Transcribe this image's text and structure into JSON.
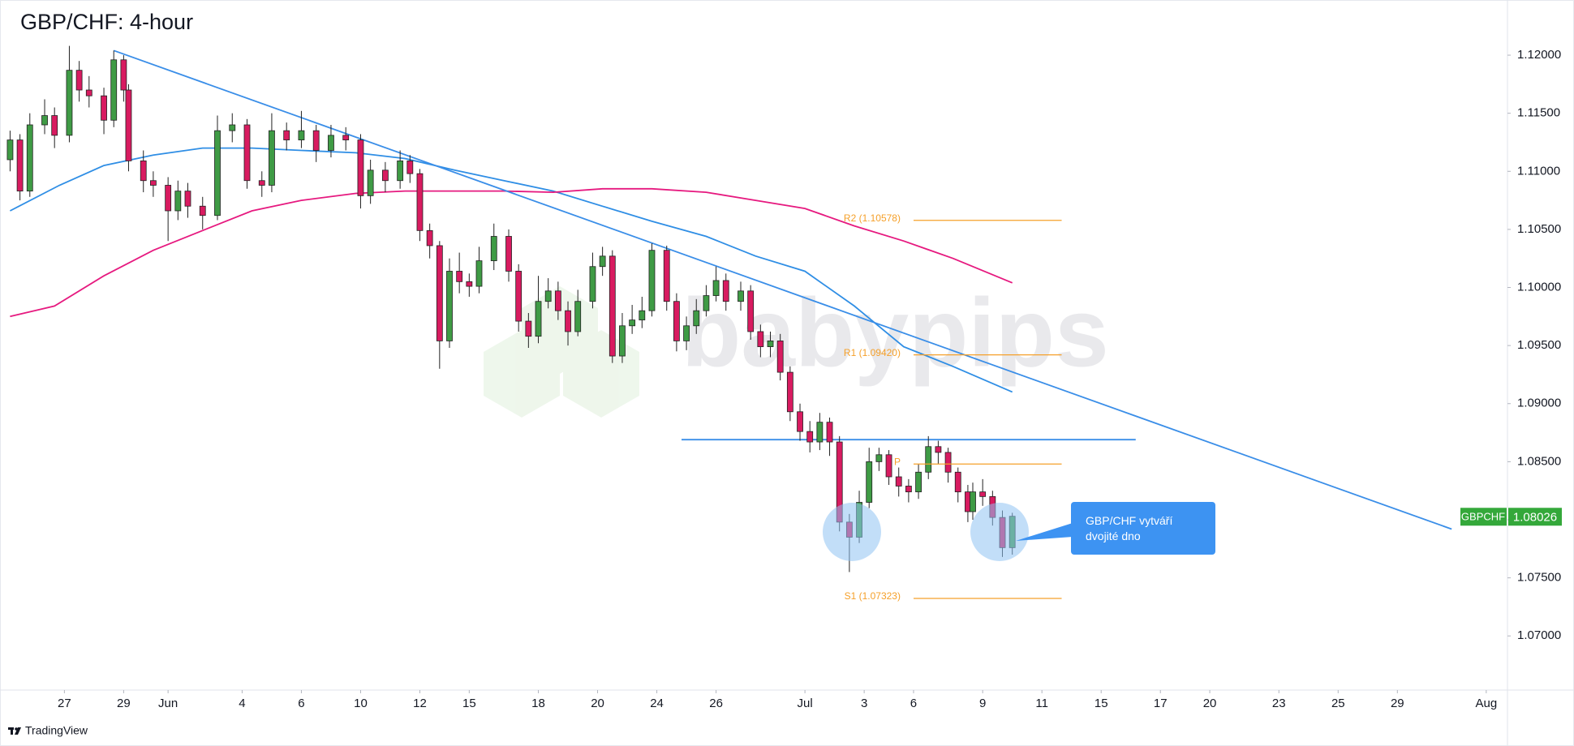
{
  "chart_data": {
    "type": "candlestick",
    "title": "GBP/CHF: 4-hour",
    "watermark": "babypips",
    "footer": "TradingView",
    "grid": false,
    "up_color": "#3f9b45",
    "down_color": "#d81b60",
    "xlim": [
      -0.4,
      303.3
    ],
    "ylim": [
      1.06534,
      1.12475
    ],
    "yticks": [
      {
        "value": 1.12,
        "label": "1.12000"
      },
      {
        "value": 1.115,
        "label": "1.11500"
      },
      {
        "value": 1.11,
        "label": "1.11000"
      },
      {
        "value": 1.105,
        "label": "1.10500"
      },
      {
        "value": 1.1,
        "label": "1.10000"
      },
      {
        "value": 1.095,
        "label": "1.09500"
      },
      {
        "value": 1.09,
        "label": "1.09000"
      },
      {
        "value": 1.085,
        "label": "1.08500"
      },
      {
        "value": 1.08,
        "label": "1.08000"
      },
      {
        "value": 1.075,
        "label": "1.07500"
      },
      {
        "value": 1.07,
        "label": "1.07000"
      }
    ],
    "xticks": [
      {
        "value": 11,
        "label": "27"
      },
      {
        "value": 23,
        "label": "29"
      },
      {
        "value": 32,
        "label": "Jun"
      },
      {
        "value": 47,
        "label": "4"
      },
      {
        "value": 59,
        "label": "6"
      },
      {
        "value": 71,
        "label": "10"
      },
      {
        "value": 83,
        "label": "12"
      },
      {
        "value": 93,
        "label": "15"
      },
      {
        "value": 107,
        "label": "18"
      },
      {
        "value": 119,
        "label": "20"
      },
      {
        "value": 131,
        "label": "24"
      },
      {
        "value": 143,
        "label": "26"
      },
      {
        "value": 161,
        "label": "Jul"
      },
      {
        "value": 173,
        "label": "3"
      },
      {
        "value": 183,
        "label": "6"
      },
      {
        "value": 197,
        "label": "9"
      },
      {
        "value": 209,
        "label": "11"
      },
      {
        "value": 221,
        "label": "15"
      },
      {
        "value": 233,
        "label": "17"
      },
      {
        "value": 243,
        "label": "20"
      },
      {
        "value": 257,
        "label": "23"
      },
      {
        "value": 269,
        "label": "25"
      },
      {
        "value": 281,
        "label": "29"
      },
      {
        "value": 299,
        "label": "Aug"
      }
    ],
    "ohlc": {
      "x": [
        0,
        2,
        4,
        7,
        9,
        12,
        14,
        16,
        19,
        21,
        23,
        24,
        27,
        29,
        32,
        34,
        36,
        39,
        42,
        45,
        48,
        51,
        53,
        56,
        59,
        62,
        65,
        68,
        71,
        73,
        76,
        79,
        81,
        83,
        85,
        87,
        89,
        91,
        93,
        95,
        98,
        101,
        103,
        105,
        107,
        109,
        111,
        113,
        115,
        118,
        120,
        122,
        124,
        126,
        128,
        130,
        133,
        135,
        137,
        139,
        141,
        143,
        145,
        148,
        150,
        152,
        154,
        156,
        158,
        160,
        162,
        164,
        166,
        168,
        170,
        172,
        174,
        176,
        178,
        180,
        182,
        184,
        186,
        188,
        190,
        192,
        194,
        195,
        197,
        199,
        201,
        203
      ],
      "open": [
        1.111,
        1.1127,
        1.1083,
        1.114,
        1.1148,
        1.1131,
        1.1187,
        1.117,
        1.1165,
        1.1144,
        1.1196,
        1.117,
        1.1109,
        1.1092,
        1.1088,
        1.1066,
        1.1083,
        1.107,
        1.1062,
        1.1135,
        1.114,
        1.1092,
        1.1088,
        1.1135,
        1.1127,
        1.1135,
        1.1118,
        1.1131,
        1.1127,
        1.1079,
        1.1101,
        1.1092,
        1.1109,
        1.1098,
        1.1049,
        1.1036,
        1.0954,
        1.1014,
        1.1005,
        1.1001,
        1.1023,
        1.1044,
        1.1014,
        1.0971,
        1.0958,
        1.0988,
        1.0997,
        1.098,
        1.0962,
        1.0988,
        1.1018,
        1.1027,
        1.0941,
        1.0967,
        1.0972,
        1.098,
        1.1032,
        1.0988,
        1.0954,
        1.0967,
        1.098,
        1.0993,
        1.1006,
        1.0988,
        1.0997,
        1.0962,
        1.0949,
        1.0954,
        1.0927,
        1.0893,
        1.0876,
        1.0867,
        1.0884,
        1.0867,
        1.0798,
        1.0785,
        1.0815,
        1.085,
        1.0856,
        1.0837,
        1.0829,
        1.0824,
        1.0841,
        1.0863,
        1.0858,
        1.0841,
        1.0824,
        1.0807,
        1.0824,
        1.082,
        1.0802,
        1.0776
      ],
      "high": [
        1.1135,
        1.1132,
        1.115,
        1.1162,
        1.1155,
        1.1208,
        1.1195,
        1.1182,
        1.1172,
        1.1204,
        1.12,
        1.1175,
        1.1118,
        1.11,
        1.1095,
        1.1092,
        1.109,
        1.1078,
        1.1148,
        1.115,
        1.1145,
        1.11,
        1.115,
        1.1142,
        1.1152,
        1.114,
        1.114,
        1.1138,
        1.1132,
        1.111,
        1.1108,
        1.1118,
        1.1114,
        1.1102,
        1.1055,
        1.104,
        1.1025,
        1.103,
        1.1012,
        1.1035,
        1.1055,
        1.105,
        1.102,
        1.0978,
        1.101,
        1.1008,
        1.1005,
        1.0988,
        1.0998,
        1.103,
        1.1035,
        1.1032,
        1.0978,
        1.0985,
        1.0992,
        1.1038,
        1.1036,
        1.0995,
        1.0975,
        1.099,
        1.1002,
        1.1018,
        1.1012,
        1.1005,
        1.1002,
        1.0968,
        1.0962,
        1.096,
        1.0932,
        1.09,
        1.0885,
        1.0892,
        1.0888,
        1.0872,
        1.0805,
        1.0825,
        1.0862,
        1.0862,
        1.086,
        1.0845,
        1.0835,
        1.0848,
        1.0872,
        1.0868,
        1.0862,
        1.0845,
        1.083,
        1.0832,
        1.0835,
        1.0825,
        1.0808,
        1.0806
      ],
      "low": [
        1.11,
        1.1075,
        1.1078,
        1.1132,
        1.112,
        1.1125,
        1.116,
        1.1155,
        1.1132,
        1.1138,
        1.116,
        1.11,
        1.1082,
        1.1078,
        1.104,
        1.1058,
        1.106,
        1.105,
        1.1058,
        1.1125,
        1.1085,
        1.1078,
        1.1082,
        1.1118,
        1.112,
        1.1108,
        1.1112,
        1.1118,
        1.1068,
        1.1072,
        1.1082,
        1.1085,
        1.109,
        1.104,
        1.1025,
        1.093,
        1.0948,
        1.0995,
        1.0992,
        1.0995,
        1.1015,
        1.1005,
        1.0962,
        1.0948,
        1.0952,
        1.0982,
        1.0972,
        1.095,
        1.0958,
        1.0982,
        1.101,
        1.0935,
        1.0935,
        1.096,
        1.0965,
        1.0975,
        1.098,
        1.0945,
        1.0946,
        1.096,
        1.0975,
        1.0988,
        1.098,
        1.098,
        1.0955,
        1.094,
        1.094,
        1.092,
        1.0885,
        1.0868,
        1.0858,
        1.086,
        1.0855,
        1.079,
        1.0755,
        1.078,
        1.081,
        1.0842,
        1.083,
        1.082,
        1.0815,
        1.0818,
        1.0835,
        1.0848,
        1.0832,
        1.0815,
        1.0798,
        1.08,
        1.0812,
        1.0795,
        1.0768,
        1.077
      ],
      "close": [
        1.1127,
        1.1083,
        1.114,
        1.1148,
        1.1131,
        1.1187,
        1.117,
        1.1165,
        1.1144,
        1.1196,
        1.117,
        1.1109,
        1.1092,
        1.1088,
        1.1066,
        1.1083,
        1.107,
        1.1062,
        1.1135,
        1.114,
        1.1092,
        1.1088,
        1.1135,
        1.1127,
        1.1135,
        1.1118,
        1.1131,
        1.1127,
        1.1079,
        1.1101,
        1.1092,
        1.1109,
        1.1098,
        1.1049,
        1.1036,
        1.0954,
        1.1014,
        1.1005,
        1.1001,
        1.1023,
        1.1044,
        1.1014,
        1.0971,
        1.0958,
        1.0988,
        1.0997,
        1.098,
        1.0962,
        1.0988,
        1.1018,
        1.1027,
        1.0941,
        1.0967,
        1.0972,
        1.098,
        1.1032,
        1.0988,
        1.0954,
        1.0967,
        1.098,
        1.0993,
        1.1006,
        1.0988,
        1.0997,
        1.0962,
        1.0949,
        1.0954,
        1.0927,
        1.0893,
        1.0876,
        1.0867,
        1.0884,
        1.0867,
        1.0798,
        1.0785,
        1.0815,
        1.085,
        1.0856,
        1.0837,
        1.0829,
        1.0824,
        1.0841,
        1.0863,
        1.0858,
        1.0841,
        1.0824,
        1.0807,
        1.0824,
        1.082,
        1.0802,
        1.0776,
        1.0803
      ]
    },
    "lines": [
      {
        "color": "#2f8ee5",
        "x": [
          0,
          10,
          19,
          29,
          39,
          49,
          59,
          70,
          80,
          90,
          100,
          110,
          120,
          130,
          141,
          151,
          161,
          171,
          181,
          191,
          203
        ],
        "values": [
          1.1066,
          1.1088,
          1.1105,
          1.1114,
          1.112,
          1.112,
          1.1118,
          1.1116,
          1.1111,
          1.1101,
          1.1092,
          1.1083,
          1.107,
          1.1057,
          1.1044,
          1.1027,
          1.1014,
          1.0984,
          1.0949,
          1.0932,
          1.091
        ]
      },
      {
        "color": "#e6197f",
        "x": [
          0,
          9,
          19,
          29,
          39,
          49,
          59,
          70,
          80,
          90,
          100,
          110,
          120,
          130,
          141,
          151,
          161,
          171,
          181,
          191,
          203
        ],
        "values": [
          1.0975,
          1.0984,
          1.101,
          1.1032,
          1.1049,
          1.1066,
          1.1075,
          1.1081,
          1.1083,
          1.1083,
          1.1083,
          1.1082,
          1.1085,
          1.1085,
          1.1082,
          1.1075,
          1.1068,
          1.1053,
          1.104,
          1.1025,
          1.1004
        ]
      },
      {
        "color": "#3a8ee8",
        "x": [
          21,
          292
        ],
        "values": [
          1.1204,
          1.0792
        ]
      },
      {
        "color": "#3a8ee8",
        "x": [
          136,
          228
        ],
        "values": [
          1.0869,
          1.0869
        ]
      }
    ],
    "pivot_color": "#f5a02a",
    "pivots": [
      {
        "label": "R2 (1.10578)",
        "value": 1.10578,
        "x": [
          183,
          213
        ]
      },
      {
        "label": "R1 (1.09420)",
        "value": 1.0942,
        "x": [
          183,
          213
        ]
      },
      {
        "label": "P",
        "value": 1.0848,
        "x": [
          183,
          213
        ]
      },
      {
        "label": "S1 (1.07323)",
        "value": 1.07323,
        "x": [
          183,
          213
        ]
      }
    ],
    "last_price": {
      "symbol": "GBPCHF",
      "value": 1.08026,
      "color": "#34a83a"
    },
    "annotation": "GBP/CHF vytváří dvojité dno"
  }
}
